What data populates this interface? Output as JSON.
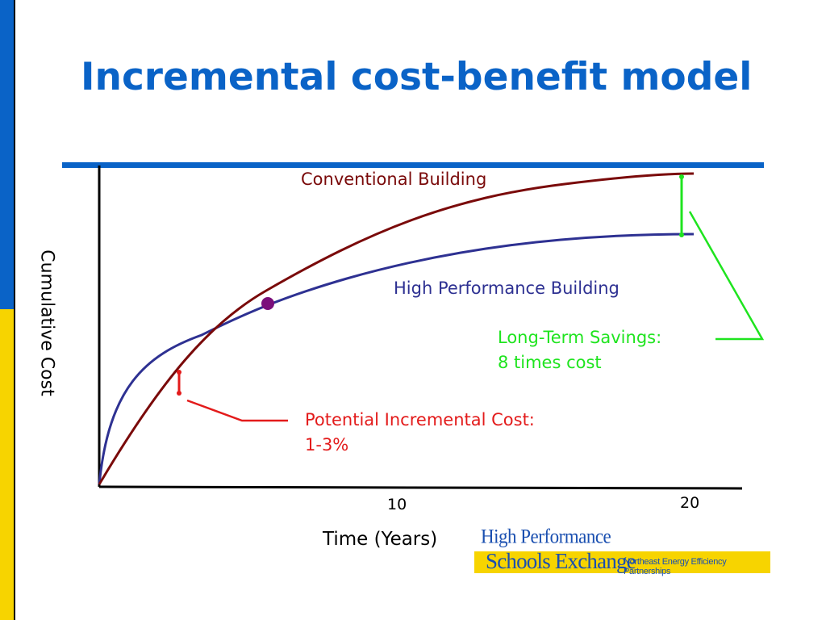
{
  "slide": {
    "title": "Incremental cost-benefit model",
    "colors": {
      "accent_blue": "#0a63c7",
      "accent_yellow": "#f7d400"
    }
  },
  "chart_data": {
    "type": "line",
    "xlabel": "Time (Years)",
    "ylabel": "Cumulative Cost",
    "x_ticks": [
      "10",
      "20"
    ],
    "series": [
      {
        "name": "Conventional Building",
        "color": "#7a0a0a"
      },
      {
        "name": "High Performance Building",
        "color": "#2e3192"
      }
    ],
    "annotations": {
      "incremental_cost": {
        "line1": "Potential Incremental Cost:",
        "line2": "1-3%",
        "color": "#e31b1b"
      },
      "savings": {
        "line1": "Long-Term Savings:",
        "line2": "8 times cost",
        "color": "#1fe41f"
      }
    },
    "breakeven_marker_color": "#7b0f7b"
  },
  "logo": {
    "line1": "High Performance",
    "line2": "Schools Exchange",
    "partner": "Northeast Energy Efficiency Partnerships"
  }
}
